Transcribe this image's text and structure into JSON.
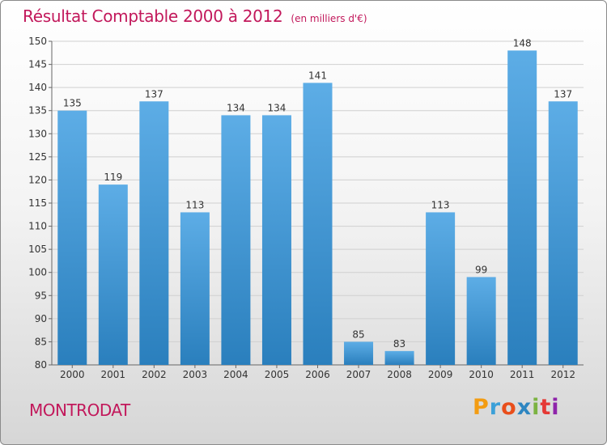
{
  "chart_title": "Résultat Comptable 2000 à 2012",
  "chart_unit": "(en milliers d'€)",
  "commune": "MONTRODAT",
  "brand": {
    "letters": [
      "P",
      "r",
      "o",
      "x",
      "i",
      "t",
      "i"
    ]
  },
  "colors": {
    "title": "#c2185b",
    "bar_top": "#5dade6",
    "bar_bottom": "#2a7fbd",
    "brand": [
      "#f39c12",
      "#3ba0d8",
      "#e94e1b",
      "#2e86c1",
      "#7cb342",
      "#e53935",
      "#8e24aa"
    ]
  },
  "chart_data": {
    "type": "bar",
    "title": "Résultat Comptable 2000 à 2012",
    "xlabel": "",
    "ylabel": "",
    "categories": [
      "2000",
      "2001",
      "2002",
      "2003",
      "2004",
      "2005",
      "2006",
      "2007",
      "2008",
      "2009",
      "2010",
      "2011",
      "2012"
    ],
    "values": [
      135,
      119,
      137,
      113,
      134,
      134,
      141,
      85,
      83,
      113,
      99,
      148,
      137
    ],
    "ylim": [
      80,
      150
    ],
    "yticks": [
      80,
      85,
      90,
      95,
      100,
      105,
      110,
      115,
      120,
      125,
      130,
      135,
      140,
      145,
      150
    ],
    "grid": true,
    "data_labels": true
  }
}
